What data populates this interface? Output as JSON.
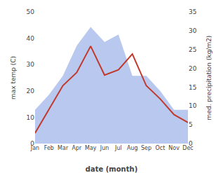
{
  "chart_data": {
    "type": "line",
    "xlabel": "date (month)",
    "ylabel": "max temp (C)",
    "y2label": "med. precipitation (kg/m2)",
    "categories": [
      "Jan",
      "Feb",
      "Mar",
      "Apr",
      "May",
      "Jun",
      "Jul",
      "Aug",
      "Sep",
      "Oct",
      "Nov",
      "Dec"
    ],
    "series": [
      {
        "type": "area",
        "color": "#b8c8ee",
        "axis": "y2",
        "values": [
          9,
          13,
          18,
          26,
          31,
          27,
          29,
          18,
          18,
          14,
          9,
          9
        ]
      },
      {
        "type": "line",
        "color": "#c0392b",
        "values": [
          4,
          13,
          22,
          27,
          37,
          26,
          28,
          34,
          22,
          17,
          11,
          8
        ]
      }
    ],
    "ylim": [
      0,
      50
    ],
    "yticks": [
      0,
      10,
      20,
      30,
      40,
      50
    ],
    "y2lim": [
      0,
      35
    ],
    "y2ticks": [
      0,
      5,
      10,
      15,
      20,
      25,
      30,
      35
    ],
    "grid": false
  }
}
